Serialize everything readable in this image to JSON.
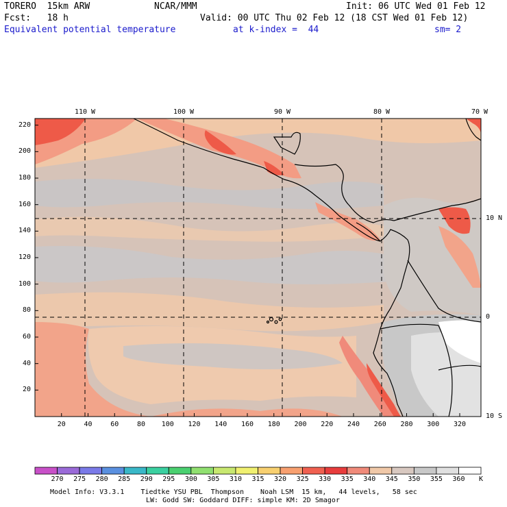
{
  "header": {
    "model": "TORERO  15km ARW",
    "center": "NCAR/MMM",
    "init": "Init: 06 UTC Wed 01 Feb 12",
    "fcst": "Fcst:   18 h",
    "valid": "Valid: 00 UTC Thu 02 Feb 12 (18 CST Wed 01 Feb 12)",
    "field": "Equivalent potential temperature",
    "level": "at k-index =  44",
    "smooth": "sm= 2"
  },
  "map": {
    "top_lon_labels": [
      "110 W",
      "100 W",
      "90 W",
      "80 W",
      "70 W"
    ],
    "right_lat_labels": [
      "10 N",
      "0",
      "10 S"
    ],
    "x_ticks": [
      "20",
      "40",
      "60",
      "80",
      "100",
      "120",
      "140",
      "160",
      "180",
      "200",
      "220",
      "240",
      "260",
      "280",
      "300",
      "320"
    ],
    "y_ticks": [
      "220",
      "200",
      "180",
      "160",
      "140",
      "120",
      "100",
      "80",
      "60",
      "40",
      "20"
    ]
  },
  "colorbar": {
    "labels": [
      "270",
      "275",
      "280",
      "285",
      "290",
      "295",
      "300",
      "305",
      "310",
      "315",
      "320",
      "325",
      "330",
      "335",
      "340",
      "345",
      "350",
      "355",
      "360"
    ],
    "unit": "K",
    "colors": [
      "#c850c8",
      "#9a6ad8",
      "#7a7ae8",
      "#5a90e0",
      "#3ab8c8",
      "#3ad0a0",
      "#4ad070",
      "#90e070",
      "#c8e870",
      "#f0f070",
      "#f8d070",
      "#f8a070",
      "#f06050",
      "#e83c3c",
      "#f08a7a",
      "#f0c8a8",
      "#d8c8c0",
      "#c8c8c8",
      "#e0e0e0",
      "#ffffff"
    ]
  },
  "footer": {
    "line1": "Model Info: V3.3.1    Tiedtke YSU PBL  Thompson    Noah LSM  15 km,   44 levels,   58 sec",
    "line2": "LW: Godd SW: Goddard DIFF: simple KM: 2D Smagor"
  }
}
